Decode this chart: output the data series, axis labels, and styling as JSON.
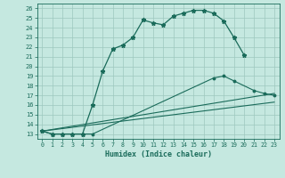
{
  "xlabel": "Humidex (Indice chaleur)",
  "bg_color": "#c5e8e0",
  "grid_color": "#9dc8be",
  "line_color": "#1a6b5a",
  "xlim": [
    -0.5,
    23.5
  ],
  "ylim": [
    12.5,
    26.5
  ],
  "xticks": [
    0,
    1,
    2,
    3,
    4,
    5,
    6,
    7,
    8,
    9,
    10,
    11,
    12,
    13,
    14,
    15,
    16,
    17,
    18,
    19,
    20,
    21,
    22,
    23
  ],
  "yticks": [
    13,
    14,
    15,
    16,
    17,
    18,
    19,
    20,
    21,
    22,
    23,
    24,
    25,
    26
  ],
  "curve1_x": [
    0,
    1,
    2,
    3,
    4,
    5,
    6,
    7,
    8,
    9,
    10,
    11,
    12,
    13,
    14,
    15,
    16,
    17,
    18,
    19,
    20
  ],
  "curve1_y": [
    13.3,
    13.0,
    13.0,
    13.0,
    13.0,
    16.0,
    19.5,
    21.8,
    22.2,
    23.0,
    24.8,
    24.5,
    24.3,
    25.2,
    25.5,
    25.8,
    25.8,
    25.5,
    24.7,
    23.0,
    21.2
  ],
  "curve2_x": [
    0,
    1,
    2,
    3,
    4,
    5,
    17,
    18,
    19,
    21,
    22,
    23
  ],
  "curve2_y": [
    13.3,
    13.0,
    13.0,
    13.0,
    13.0,
    13.0,
    18.8,
    19.0,
    18.5,
    17.5,
    17.2,
    17.0
  ],
  "line3_x": [
    0,
    23
  ],
  "line3_y": [
    13.3,
    17.2
  ],
  "line4_x": [
    0,
    23
  ],
  "line4_y": [
    13.3,
    16.3
  ]
}
